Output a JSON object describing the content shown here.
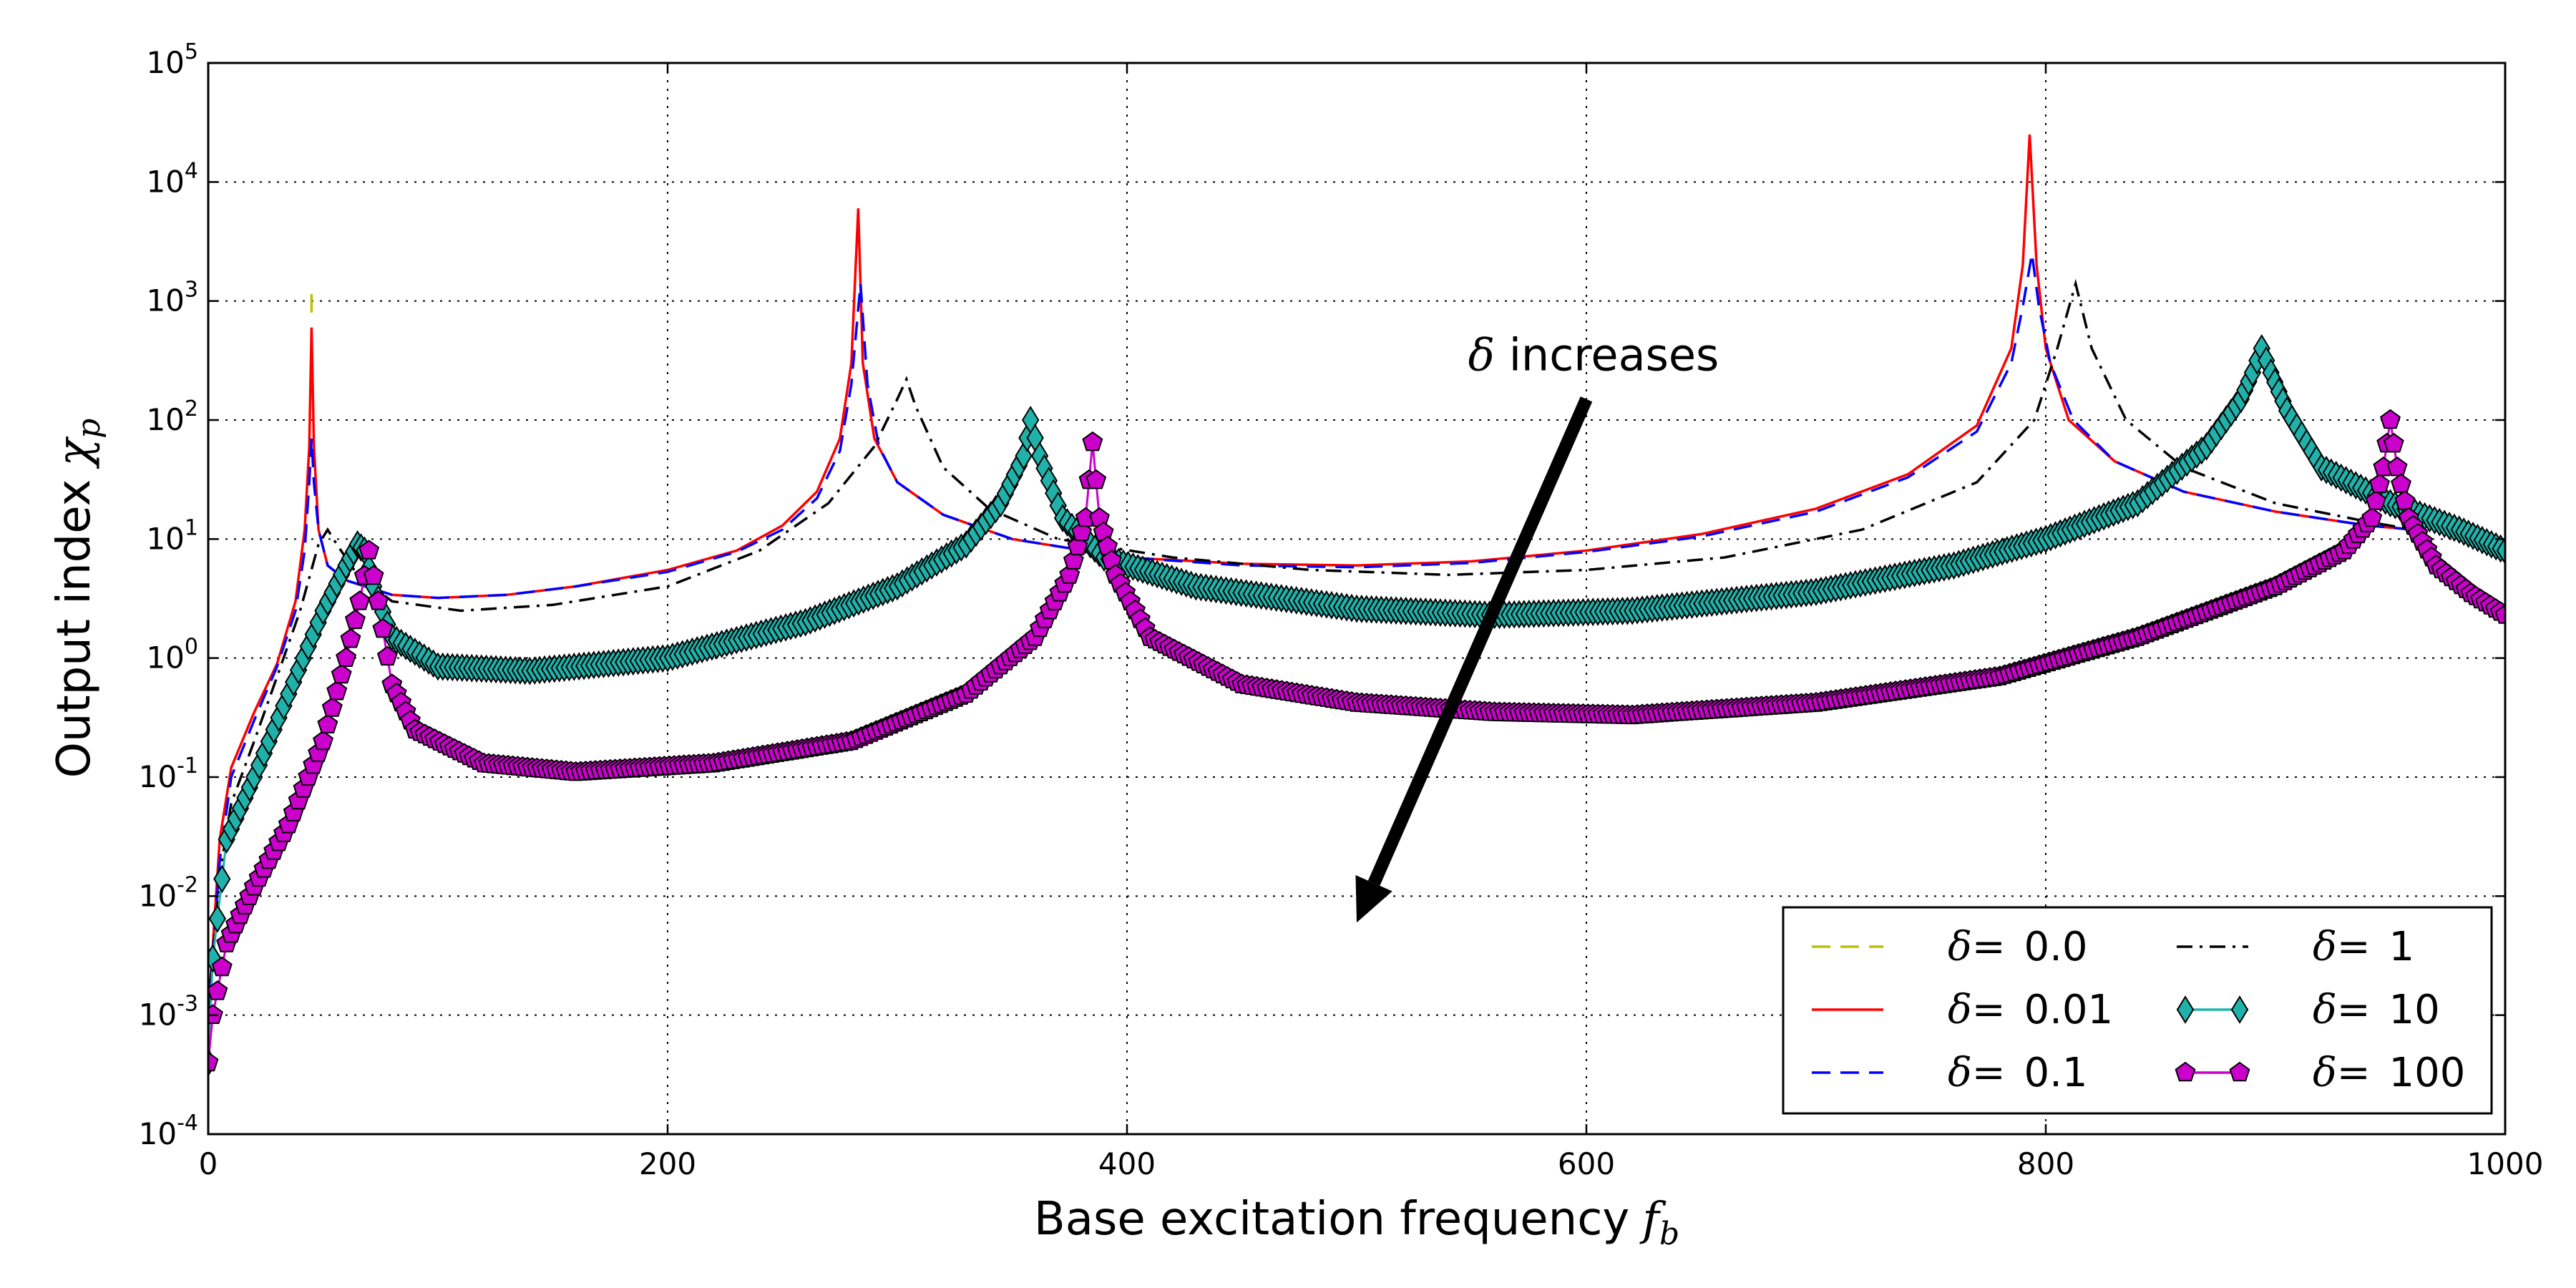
{
  "chart_data": {
    "type": "line",
    "title": "",
    "xlabel": "Base excitation frequency",
    "xlabel_symbol": "f",
    "xlabel_subscript": "b",
    "ylabel": "Output index",
    "ylabel_symbol": "χ",
    "ylabel_subscript": "p",
    "xlim": [
      0,
      1000
    ],
    "ylim": [
      0.0001,
      100000
    ],
    "yscale": "log",
    "grid": true,
    "x_ticks": [
      0,
      200,
      400,
      600,
      800,
      1000
    ],
    "y_ticks": [
      {
        "value": 0.0001,
        "base": "10",
        "exp": "-4"
      },
      {
        "value": 0.001,
        "base": "10",
        "exp": "-3"
      },
      {
        "value": 0.01,
        "base": "10",
        "exp": "-2"
      },
      {
        "value": 0.1,
        "base": "10",
        "exp": "-1"
      },
      {
        "value": 1,
        "base": "10",
        "exp": "0"
      },
      {
        "value": 10,
        "base": "10",
        "exp": "1"
      },
      {
        "value": 100,
        "base": "10",
        "exp": "2"
      },
      {
        "value": 1000,
        "base": "10",
        "exp": "3"
      },
      {
        "value": 10000,
        "base": "10",
        "exp": "4"
      },
      {
        "value": 100000,
        "base": "10",
        "exp": "5"
      }
    ],
    "legend_position": "bottom-right",
    "annotation": {
      "symbol": "δ",
      "text": " increases",
      "arrow_from": {
        "x": 600,
        "y": 150
      },
      "arrow_to": {
        "x": 500,
        "y": 0.006
      }
    },
    "series": [
      {
        "name": "0.0",
        "legend_symbol": "δ",
        "legend_eq": "= ",
        "color": "#bfbf00",
        "style": "dashed",
        "marker": "none",
        "points": [
          [
            45,
            800
          ],
          [
            45,
            1200
          ]
        ]
      },
      {
        "name": "0.01",
        "legend_symbol": "δ",
        "legend_eq": "= ",
        "color": "#ff0000",
        "style": "solid",
        "marker": "none",
        "points": [
          [
            0,
            0.001
          ],
          [
            5,
            0.03
          ],
          [
            10,
            0.12
          ],
          [
            20,
            0.35
          ],
          [
            30,
            0.9
          ],
          [
            38,
            3
          ],
          [
            42,
            12
          ],
          [
            44,
            60
          ],
          [
            45,
            600
          ],
          [
            46,
            60
          ],
          [
            48,
            12
          ],
          [
            52,
            6
          ],
          [
            60,
            4.5
          ],
          [
            80,
            3.4
          ],
          [
            100,
            3.2
          ],
          [
            130,
            3.4
          ],
          [
            160,
            4
          ],
          [
            200,
            5.5
          ],
          [
            230,
            8
          ],
          [
            250,
            13
          ],
          [
            265,
            25
          ],
          [
            275,
            70
          ],
          [
            280,
            300
          ],
          [
            283,
            6000
          ],
          [
            285,
            300
          ],
          [
            290,
            70
          ],
          [
            300,
            30
          ],
          [
            320,
            16
          ],
          [
            350,
            10
          ],
          [
            400,
            7
          ],
          [
            450,
            6.2
          ],
          [
            500,
            6
          ],
          [
            550,
            6.5
          ],
          [
            600,
            8
          ],
          [
            650,
            11
          ],
          [
            700,
            18
          ],
          [
            740,
            35
          ],
          [
            770,
            90
          ],
          [
            785,
            400
          ],
          [
            790,
            2000
          ],
          [
            793,
            25000
          ],
          [
            796,
            2000
          ],
          [
            800,
            400
          ],
          [
            810,
            100
          ],
          [
            830,
            45
          ],
          [
            860,
            25
          ],
          [
            900,
            17
          ],
          [
            940,
            13
          ],
          [
            960,
            12
          ]
        ]
      },
      {
        "name": "0.1",
        "legend_symbol": "δ",
        "legend_eq": "= ",
        "color": "#0000ff",
        "style": "dashed",
        "marker": "none",
        "points": [
          [
            0,
            0.001
          ],
          [
            5,
            0.02
          ],
          [
            10,
            0.1
          ],
          [
            20,
            0.3
          ],
          [
            30,
            0.85
          ],
          [
            38,
            2.5
          ],
          [
            42,
            8
          ],
          [
            44,
            30
          ],
          [
            45,
            70
          ],
          [
            46,
            30
          ],
          [
            48,
            12
          ],
          [
            52,
            6
          ],
          [
            60,
            4.5
          ],
          [
            80,
            3.4
          ],
          [
            100,
            3.2
          ],
          [
            130,
            3.4
          ],
          [
            160,
            4
          ],
          [
            200,
            5.3
          ],
          [
            230,
            7.8
          ],
          [
            250,
            12
          ],
          [
            265,
            22
          ],
          [
            275,
            55
          ],
          [
            280,
            200
          ],
          [
            284,
            1400
          ],
          [
            287,
            200
          ],
          [
            292,
            60
          ],
          [
            300,
            30
          ],
          [
            320,
            16
          ],
          [
            350,
            10
          ],
          [
            400,
            7
          ],
          [
            450,
            6
          ],
          [
            500,
            5.8
          ],
          [
            550,
            6.3
          ],
          [
            600,
            7.8
          ],
          [
            650,
            10.5
          ],
          [
            700,
            17
          ],
          [
            740,
            33
          ],
          [
            770,
            80
          ],
          [
            785,
            300
          ],
          [
            790,
            900
          ],
          [
            794,
            2500
          ],
          [
            797,
            900
          ],
          [
            802,
            300
          ],
          [
            812,
            100
          ],
          [
            830,
            45
          ],
          [
            860,
            25
          ],
          [
            900,
            17
          ],
          [
            940,
            13
          ],
          [
            960,
            12
          ]
        ]
      },
      {
        "name": "1",
        "legend_symbol": "δ",
        "legend_eq": "= ",
        "color": "#000000",
        "style": "dashdot",
        "marker": "none",
        "points": [
          [
            0,
            0.001
          ],
          [
            5,
            0.015
          ],
          [
            10,
            0.06
          ],
          [
            20,
            0.2
          ],
          [
            30,
            0.7
          ],
          [
            40,
            2.5
          ],
          [
            48,
            9
          ],
          [
            52,
            12
          ],
          [
            56,
            9
          ],
          [
            65,
            5
          ],
          [
            80,
            3
          ],
          [
            110,
            2.5
          ],
          [
            150,
            2.8
          ],
          [
            200,
            4
          ],
          [
            240,
            8
          ],
          [
            270,
            20
          ],
          [
            290,
            60
          ],
          [
            300,
            150
          ],
          [
            304,
            220
          ],
          [
            308,
            130
          ],
          [
            320,
            40
          ],
          [
            340,
            18
          ],
          [
            370,
            10
          ],
          [
            420,
            7
          ],
          [
            480,
            5.5
          ],
          [
            540,
            5
          ],
          [
            600,
            5.5
          ],
          [
            660,
            7
          ],
          [
            720,
            12
          ],
          [
            770,
            30
          ],
          [
            795,
            100
          ],
          [
            805,
            400
          ],
          [
            813,
            1400
          ],
          [
            820,
            400
          ],
          [
            835,
            100
          ],
          [
            860,
            40
          ],
          [
            900,
            20
          ],
          [
            940,
            14
          ],
          [
            960,
            12
          ]
        ]
      },
      {
        "name": "10",
        "legend_symbol": "δ",
        "legend_eq": "= ",
        "color": "#20b2aa",
        "style": "solid",
        "marker": "diamond",
        "points": [
          [
            0,
            0.0004
          ],
          [
            2,
            0.003
          ],
          [
            8,
            0.03
          ],
          [
            20,
            0.1
          ],
          [
            35,
            0.5
          ],
          [
            50,
            2.5
          ],
          [
            60,
            6
          ],
          [
            65,
            9
          ],
          [
            68,
            8
          ],
          [
            72,
            4
          ],
          [
            80,
            1.5
          ],
          [
            100,
            0.85
          ],
          [
            140,
            0.78
          ],
          [
            200,
            1
          ],
          [
            260,
            2
          ],
          [
            300,
            4
          ],
          [
            330,
            9
          ],
          [
            345,
            20
          ],
          [
            355,
            50
          ],
          [
            358,
            100
          ],
          [
            362,
            50
          ],
          [
            372,
            15
          ],
          [
            390,
            7
          ],
          [
            430,
            4
          ],
          [
            500,
            2.6
          ],
          [
            560,
            2.3
          ],
          [
            620,
            2.5
          ],
          [
            700,
            3.6
          ],
          [
            760,
            6
          ],
          [
            800,
            10
          ],
          [
            840,
            20
          ],
          [
            870,
            60
          ],
          [
            885,
            150
          ],
          [
            890,
            250
          ],
          [
            894,
            400
          ],
          [
            898,
            250
          ],
          [
            905,
            120
          ],
          [
            920,
            40
          ],
          [
            950,
            20
          ],
          [
            980,
            12
          ],
          [
            1000,
            8
          ]
        ]
      },
      {
        "name": "100",
        "legend_symbol": "δ",
        "legend_eq": "= ",
        "color": "#cc00cc",
        "style": "solid",
        "marker": "pentagon",
        "points": [
          [
            0,
            0.0004
          ],
          [
            2,
            0.001
          ],
          [
            8,
            0.004
          ],
          [
            20,
            0.012
          ],
          [
            35,
            0.04
          ],
          [
            50,
            0.2
          ],
          [
            60,
            1
          ],
          [
            66,
            3
          ],
          [
            70,
            8
          ],
          [
            74,
            3
          ],
          [
            80,
            0.6
          ],
          [
            90,
            0.25
          ],
          [
            120,
            0.13
          ],
          [
            160,
            0.11
          ],
          [
            220,
            0.13
          ],
          [
            280,
            0.2
          ],
          [
            330,
            0.5
          ],
          [
            360,
            1.5
          ],
          [
            375,
            5
          ],
          [
            382,
            15
          ],
          [
            385,
            65
          ],
          [
            388,
            15
          ],
          [
            395,
            5
          ],
          [
            410,
            1.5
          ],
          [
            450,
            0.6
          ],
          [
            500,
            0.42
          ],
          [
            560,
            0.35
          ],
          [
            620,
            0.33
          ],
          [
            700,
            0.42
          ],
          [
            780,
            0.7
          ],
          [
            840,
            1.5
          ],
          [
            900,
            4
          ],
          [
            930,
            8
          ],
          [
            942,
            15
          ],
          [
            947,
            40
          ],
          [
            950,
            100
          ],
          [
            953,
            40
          ],
          [
            958,
            15
          ],
          [
            970,
            6
          ],
          [
            985,
            3.5
          ],
          [
            1000,
            2.3
          ]
        ]
      }
    ]
  }
}
